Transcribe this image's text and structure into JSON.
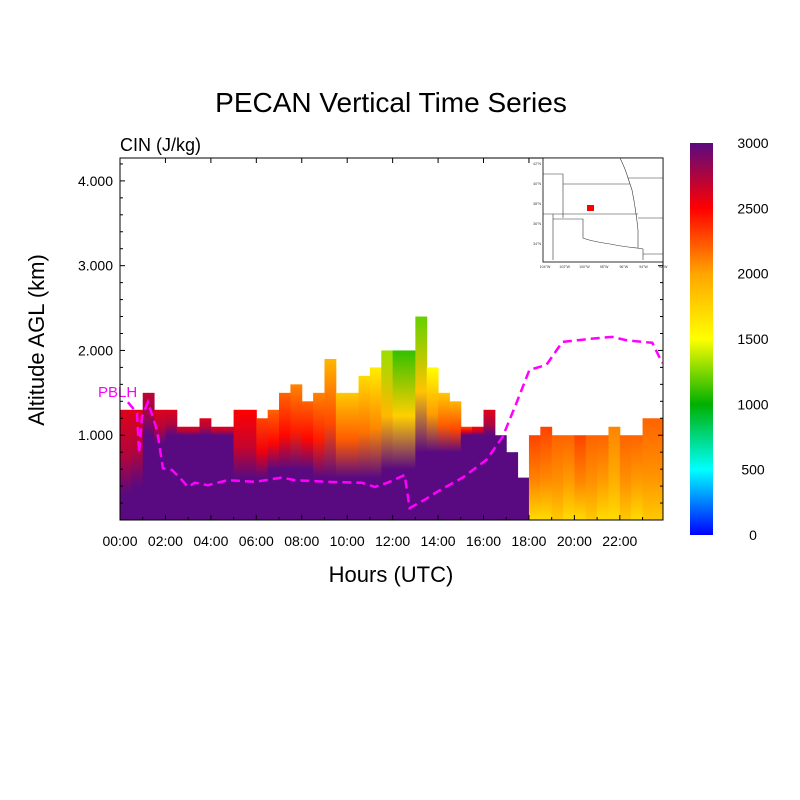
{
  "chart_data": {
    "type": "heatmap",
    "title": "PECAN Vertical Time Series",
    "subtitle": "CIN (J/kg)",
    "xlabel": "Hours (UTC)",
    "ylabel": "Altitude AGL (km)",
    "xlim": [
      0,
      23.9
    ],
    "ylim": [
      0,
      4.27
    ],
    "x_ticks": [
      0,
      2,
      4,
      6,
      8,
      10,
      12,
      14,
      16,
      18,
      20,
      22
    ],
    "x_tick_labels": [
      "00:00",
      "02:00",
      "04:00",
      "06:00",
      "08:00",
      "10:00",
      "12:00",
      "14:00",
      "16:00",
      "18:00",
      "20:00",
      "22:00"
    ],
    "y_ticks": [
      1,
      2,
      3,
      4
    ],
    "y_tick_labels": [
      "1.000",
      "2.000",
      "3.000",
      "4.000"
    ],
    "colorbar": {
      "range": [
        0,
        3000
      ],
      "tick_labels": [
        "0",
        "500",
        "1000",
        "1500",
        "2000",
        "2500",
        "3000"
      ],
      "ticks": [
        0,
        500,
        1000,
        1500,
        2000,
        2500,
        3000
      ],
      "colors": [
        {
          "v": 0,
          "c": "#0000ff"
        },
        {
          "v": 500,
          "c": "#00ffff"
        },
        {
          "v": 1000,
          "c": "#00b000"
        },
        {
          "v": 1500,
          "c": "#ffff00"
        },
        {
          "v": 2000,
          "c": "#ffa500"
        },
        {
          "v": 2500,
          "c": "#ff0000"
        },
        {
          "v": 3000,
          "c": "#5a0a80"
        }
      ]
    },
    "columns": {
      "hours_step": 0.5,
      "top_km": [
        1.3,
        1.3,
        1.5,
        1.3,
        1.3,
        1.1,
        1.1,
        1.2,
        1.1,
        1.1,
        1.3,
        1.3,
        1.2,
        1.3,
        1.5,
        1.6,
        1.4,
        1.5,
        1.9,
        1.5,
        1.5,
        1.7,
        1.8,
        2.0,
        2.0,
        2.0,
        2.4,
        1.8,
        1.5,
        1.4,
        1.1,
        1.1,
        1.3,
        1.0,
        0.8,
        0.5,
        1.0,
        1.1,
        1.0,
        1.0,
        1.0,
        1.0,
        1.0,
        1.1,
        1.0,
        1.0,
        1.2,
        1.2
      ],
      "low_layer_top_km": [
        0.3,
        0.4,
        1.0,
        0.9,
        1.0,
        1.0,
        1.0,
        1.0,
        1.0,
        1.0,
        0.5,
        0.5,
        0.5,
        0.6,
        0.6,
        0.6,
        0.6,
        0.5,
        0.5,
        0.5,
        0.5,
        0.5,
        0.5,
        0.6,
        0.6,
        0.6,
        0.8,
        0.8,
        0.8,
        0.8,
        1.0,
        1.0,
        1.0,
        1.0,
        0.8,
        0.5,
        0,
        0,
        0,
        0,
        0,
        0,
        0,
        0,
        0,
        0,
        0,
        0
      ],
      "low_value": [
        3000,
        3000,
        3000,
        3000,
        3000,
        3000,
        3000,
        3000,
        3000,
        3000,
        3000,
        3000,
        3000,
        3000,
        3000,
        3000,
        3000,
        3000,
        3000,
        3000,
        3000,
        3000,
        3000,
        3000,
        3000,
        3000,
        3000,
        3000,
        3000,
        3000,
        3000,
        3000,
        3000,
        3000,
        3000,
        3000,
        1700,
        1700,
        1800,
        1700,
        1700,
        1800,
        1700,
        1700,
        1800,
        1700,
        1800,
        1800
      ],
      "top_value": [
        2600,
        2600,
        2700,
        2600,
        2600,
        2600,
        2600,
        2600,
        2600,
        2600,
        2500,
        2500,
        2300,
        2200,
        2200,
        2100,
        2200,
        2100,
        1900,
        1800,
        1800,
        1700,
        1600,
        1300,
        1100,
        1100,
        1200,
        1500,
        1800,
        1900,
        2300,
        2500,
        2600,
        2700,
        2800,
        2900,
        2300,
        2300,
        2200,
        2200,
        2300,
        2200,
        2200,
        2100,
        2200,
        2200,
        2200,
        2200
      ]
    },
    "series": [
      {
        "name": "PBLH",
        "color": "#ff00ff",
        "style": "dashed",
        "x": [
          0.35,
          0.75,
          0.84,
          0.97,
          1.23,
          1.63,
          1.89,
          2.29,
          2.73,
          2.99,
          3.3,
          3.87,
          4.75,
          5.93,
          7.12,
          7.69,
          9.14,
          10.64,
          11.21,
          11.78,
          12.53,
          12.75,
          13.41,
          14.07,
          15.08,
          16.13,
          16.84,
          17.45,
          18.02,
          18.77,
          19.47,
          20.79,
          21.67,
          22.29,
          23.43,
          23.87
        ],
        "y": [
          1.39,
          1.26,
          0.79,
          1.22,
          1.39,
          1.06,
          0.61,
          0.59,
          0.47,
          0.39,
          0.44,
          0.41,
          0.47,
          0.45,
          0.5,
          0.47,
          0.45,
          0.44,
          0.39,
          0.44,
          0.53,
          0.14,
          0.24,
          0.35,
          0.5,
          0.71,
          0.98,
          1.38,
          1.77,
          1.83,
          2.1,
          2.14,
          2.16,
          2.12,
          2.09,
          1.85
        ]
      }
    ],
    "pblh_label": "PBLH",
    "inset_map": {
      "lat_labels": [
        "42°N",
        "40°N",
        "38°N",
        "36°N",
        "34°N"
      ],
      "lon_labels": [
        "104°W",
        "102°W",
        "100°W",
        "98°W",
        "96°W",
        "94°W",
        "92°W"
      ],
      "marker_color": "#ff0000"
    }
  }
}
